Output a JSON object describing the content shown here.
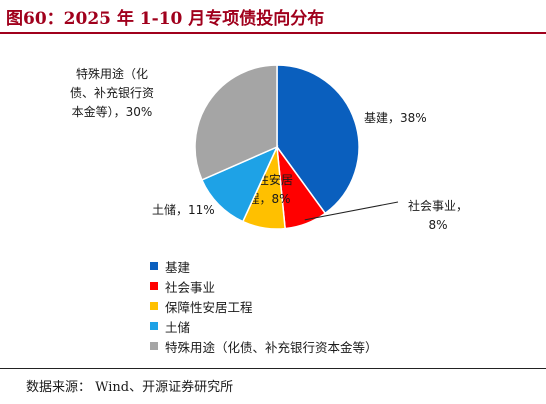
{
  "header": {
    "title": "图60：2025 年 1-10 月专项债投向分布"
  },
  "footer": {
    "source": "数据来源：  Wind、开源证券研究所"
  },
  "chart_data": {
    "type": "pie",
    "title": "",
    "legend_placement": "bottom-left",
    "slices": [
      {
        "name": "基建",
        "value": 38,
        "color": "#0a5fbe",
        "label_lines": [
          "基建，38%"
        ]
      },
      {
        "name": "社会事业",
        "value": 8,
        "color": "#ff0000",
        "label_lines": [
          "社会事业，",
          "8%"
        ]
      },
      {
        "name": "保障性安居工程",
        "value": 8,
        "color": "#ffc000",
        "label_lines": [
          "保障性安居",
          "工程，8%"
        ]
      },
      {
        "name": "土储",
        "value": 11,
        "color": "#1ea2e6",
        "label_lines": [
          "土储，11%"
        ]
      },
      {
        "name": "特殊用途（化债、补充银行资本金等）",
        "value": 30,
        "color": "#a5a5a5",
        "label_lines": [
          "特殊用途（化",
          "债、补充银行资",
          "本金等），30%"
        ]
      }
    ]
  }
}
